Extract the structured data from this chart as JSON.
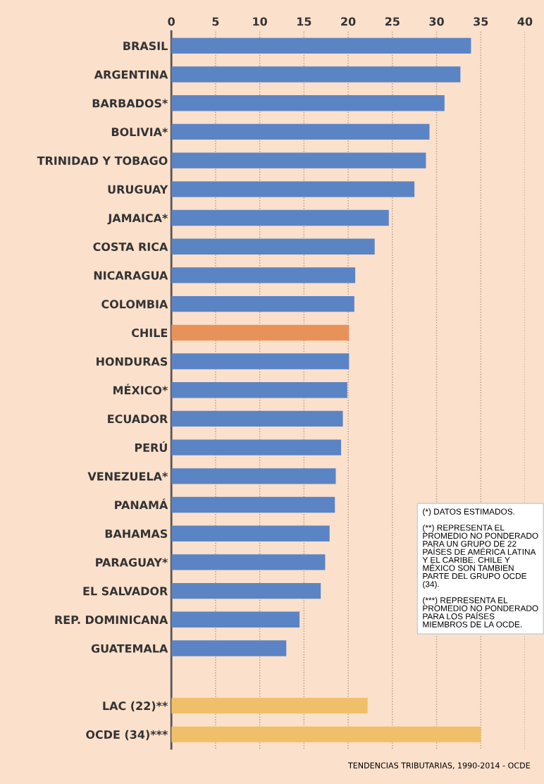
{
  "chart_data": {
    "type": "bar",
    "orientation": "horizontal",
    "categories": [
      "BRASIL",
      "ARGENTINA",
      "BARBADOS*",
      "BOLIVIA*",
      "TRINIDAD Y TOBAGO",
      "URUGUAY",
      "JAMAICA*",
      "COSTA RICA",
      "NICARAGUA",
      "COLOMBIA",
      "CHILE",
      "HONDURAS",
      "MÉXICO*",
      "ECUADOR",
      "PERÚ",
      "VENEZUELA*",
      "PANAMÁ",
      "BAHAMAS",
      "PARAGUAY*",
      "EL SALVADOR",
      "REP. DOMINICANA",
      "GUATEMALA",
      null,
      "LAC (22)**",
      "OCDE (34)***"
    ],
    "values": [
      33.9,
      32.7,
      30.9,
      29.2,
      28.8,
      27.5,
      24.6,
      23.0,
      20.8,
      20.7,
      20.1,
      20.1,
      19.9,
      19.4,
      19.2,
      18.6,
      18.5,
      17.9,
      17.4,
      16.9,
      14.5,
      13.0,
      null,
      22.2,
      35.0
    ],
    "colors": [
      "#5b84c4",
      "#5b84c4",
      "#5b84c4",
      "#5b84c4",
      "#5b84c4",
      "#5b84c4",
      "#5b84c4",
      "#5b84c4",
      "#5b84c4",
      "#5b84c4",
      "#e8925a",
      "#5b84c4",
      "#5b84c4",
      "#5b84c4",
      "#5b84c4",
      "#5b84c4",
      "#5b84c4",
      "#5b84c4",
      "#5b84c4",
      "#5b84c4",
      "#5b84c4",
      "#5b84c4",
      "#5b84c4",
      "#f0bf6a",
      "#f0bf6a"
    ],
    "xlim": [
      0,
      40
    ],
    "xticks": [
      0,
      5,
      10,
      15,
      20,
      25,
      30,
      35,
      40
    ],
    "grid": "x",
    "legend": false,
    "annotations": [
      "(*) DATOS ESTIMADOS.\n\n(**) REPRESENTA EL\nPROMEDIO NO PONDERADO\nPARA UN GRUPO DE 22\nPAÍSES DE AMÉRICA LATINA\nY EL CARIBE. CHILE Y\nMÉXICO SON TAMBIEN\nPARTE DEL GRUPO OCDE\n(34).\n\n(***) REPRESENTA EL\nPROMEDIO NO PONDERADO\nPARA LOS PAÍSES\nMIEMBROS DE LA OCDE.",
      "TENDENCIAS TRIBUTARIAS, 1990-2014 - OCDE"
    ]
  }
}
